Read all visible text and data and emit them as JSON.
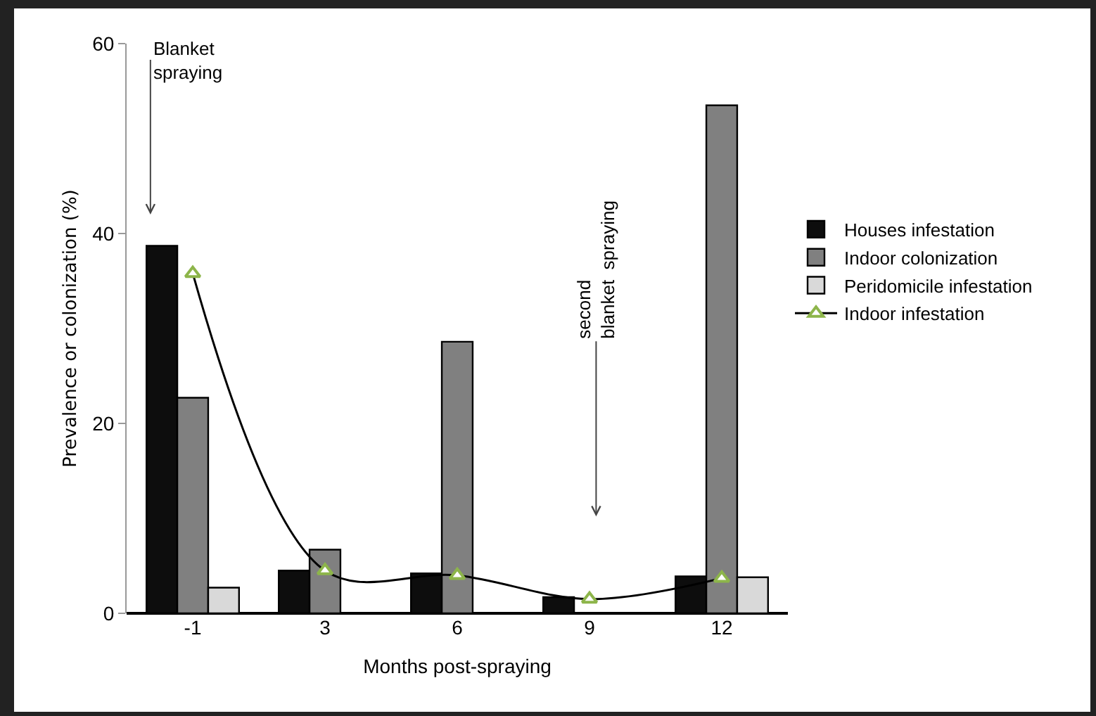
{
  "chart_data": {
    "type": "bar",
    "xlabel": "Months post-spraying",
    "ylabel": "Prevalence or colonization (%)",
    "categories": [
      "-1",
      "3",
      "6",
      "9",
      "12"
    ],
    "ylim": [
      0,
      60
    ],
    "yticks": [
      0,
      20,
      40,
      60
    ],
    "grid": false,
    "legend": "right",
    "series": [
      {
        "name": "Houses infestation",
        "color": "#0d0d0d",
        "values": [
          38.7,
          4.5,
          4.2,
          1.7,
          3.9
        ]
      },
      {
        "name": "Indoor colonization",
        "color": "#808080",
        "values": [
          22.7,
          6.7,
          28.6,
          null,
          53.5
        ]
      },
      {
        "name": "Peridomicile infestation",
        "color": "#d9d9d9",
        "values": [
          2.7,
          null,
          null,
          null,
          3.8
        ]
      },
      {
        "name": "Indoor infestation",
        "type": "line",
        "color": "#000000",
        "marker": "triangle",
        "values": [
          35.8,
          4.5,
          4.0,
          1.5,
          3.7
        ]
      }
    ],
    "annotations": [
      "Blanket\nspraying",
      "second\nblanket  spraying"
    ]
  }
}
